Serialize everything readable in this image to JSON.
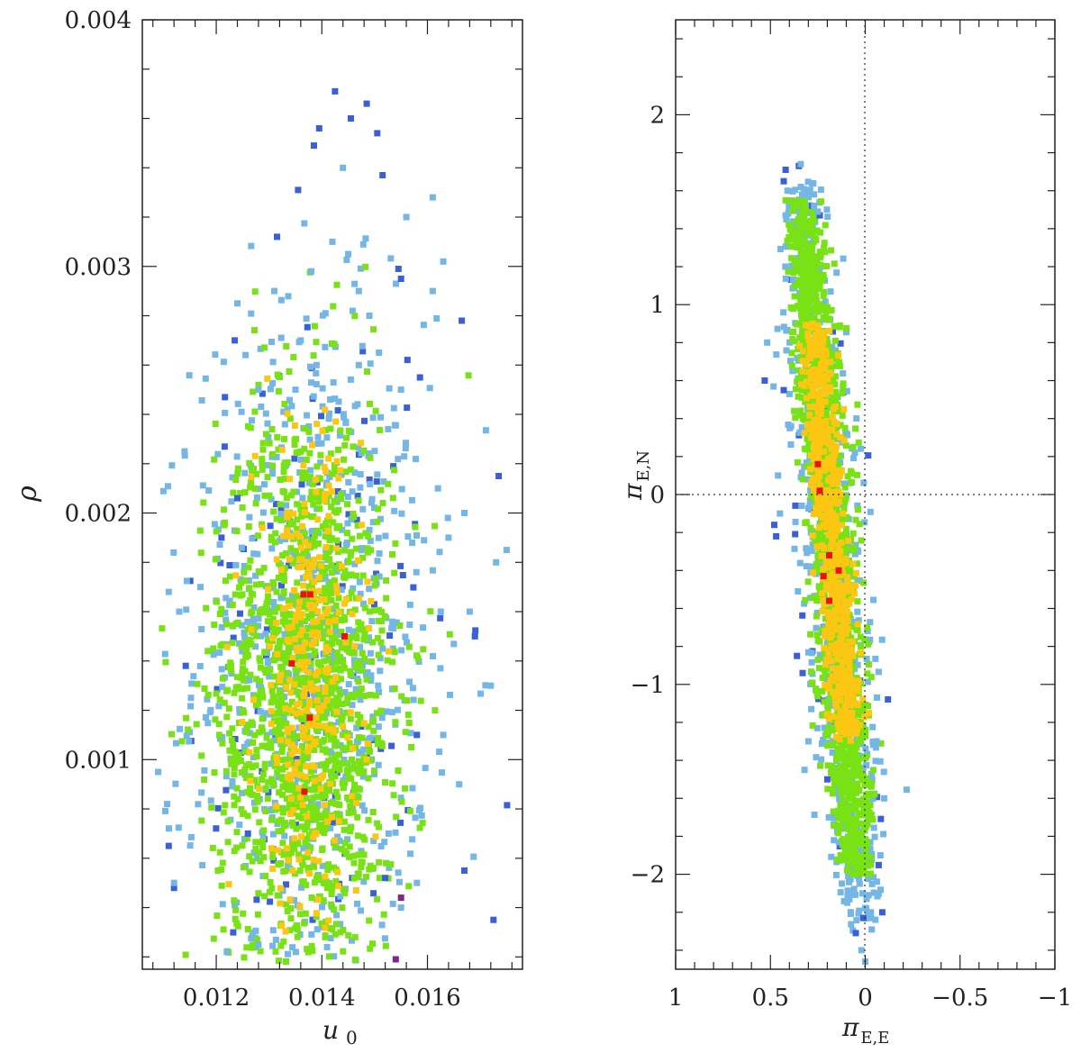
{
  "colors": {
    "blue_dark": "#3a5fd6",
    "blue_light": "#74b6e6",
    "green": "#78e214",
    "yellow": "#fcc713",
    "red": "#ee1111",
    "purple": "#7a2a8a"
  },
  "chart_data": [
    {
      "type": "scatter",
      "title": "",
      "xlabel": "u",
      "xlabel_sub": "0",
      "ylabel": "ρ",
      "xlim": [
        0.0106,
        0.0178
      ],
      "ylim": [
        0.00015,
        0.004
      ],
      "xticks": [
        0.012,
        0.014,
        0.016
      ],
      "xtick_labels": [
        "0.012",
        "0.014",
        "0.016"
      ],
      "yticks": [
        0.001,
        0.002,
        0.003,
        0.004
      ],
      "ytick_labels": [
        "0.001",
        "0.002",
        "0.003",
        "0.004"
      ],
      "grid": false,
      "series": [
        {
          "color": "blue_dark",
          "points": [
            [
              0.01425,
              0.00371
            ],
            [
              0.01485,
              0.00366
            ],
            [
              0.01455,
              0.0036
            ],
            [
              0.01395,
              0.00356
            ],
            [
              0.01505,
              0.00354
            ],
            [
              0.01385,
              0.00349
            ],
            [
              0.01515,
              0.00337
            ],
            [
              0.01355,
              0.00331
            ],
            [
              0.01315,
              0.00312
            ],
            [
              0.0155,
              0.00295
            ],
            [
              0.01545,
              0.00299
            ],
            [
              0.01235,
              0.0027
            ],
            [
              0.01665,
              0.00278
            ],
            [
              0.01735,
              0.00215
            ],
            [
              0.0111,
              0.00065
            ],
            [
              0.0112,
              0.00048
            ],
            [
              0.0124,
              0.00206
            ],
            [
              0.0121,
              0.0019
            ],
            [
              0.0167,
              0.00055
            ],
            [
              0.01725,
              0.00035
            ],
            [
              0.0152,
              0.00052
            ],
            [
              0.0126,
              0.0007
            ],
            [
              0.0158,
              0.0011
            ],
            [
              0.0169,
              0.0015
            ]
          ]
        },
        {
          "color": "blue_light",
          "points": [
            [
              0.0161,
              0.00328
            ],
            [
              0.0156,
              0.0032
            ],
            [
              0.0163,
              0.00302
            ],
            [
              0.0138,
              0.00298
            ],
            [
              0.0145,
              0.00305
            ],
            [
              0.0131,
              0.0029
            ],
            [
              0.0124,
              0.00285
            ],
            [
              0.0149,
              0.0028
            ],
            [
              0.0161,
              0.0029
            ],
            [
              0.0117,
              0.0017
            ],
            [
              0.0114,
              0.00225
            ],
            [
              0.0111,
              0.00168
            ],
            [
              0.0113,
              0.0016
            ],
            [
              0.0112,
              0.0005
            ],
            [
              0.0109,
              0.00095
            ],
            [
              0.0162,
              0.0021
            ],
            [
              0.0164,
              0.0019
            ],
            [
              0.0167,
              0.002
            ],
            [
              0.0168,
              0.0016
            ],
            [
              0.0172,
              0.0013
            ],
            [
              0.0173,
              0.0018
            ],
            [
              0.0175,
              0.00185
            ],
            [
              0.0166,
              0.0009
            ],
            [
              0.0163,
              0.0011
            ],
            [
              0.0158,
              0.0005
            ],
            [
              0.0155,
              0.0004
            ],
            [
              0.0122,
              0.00022
            ],
            [
              0.0128,
              0.00025
            ],
            [
              0.0141,
              0.00024
            ],
            [
              0.0139,
              0.0026
            ],
            [
              0.0147,
              0.0026
            ],
            [
              0.0135,
              0.0025
            ],
            [
              0.0128,
              0.0025
            ],
            [
              0.0155,
              0.0025
            ],
            [
              0.0142,
              0.0031
            ],
            [
              0.0136,
              0.0027
            ],
            [
              0.0144,
              0.0034
            ],
            [
              0.0147,
              0.0029
            ]
          ]
        },
        {
          "color": "purple",
          "points": [
            [
              0.0154,
              0.00019
            ],
            [
              0.0155,
              0.00044
            ]
          ]
        },
        {
          "color": "red",
          "points": [
            [
              0.01365,
              0.00167
            ],
            [
              0.01378,
              0.00167
            ],
            [
              0.01443,
              0.0015
            ],
            [
              0.01343,
              0.00139
            ],
            [
              0.01377,
              0.00117
            ],
            [
              0.01367,
              0.00087
            ]
          ]
        }
      ],
      "cloud": {
        "description_values": "dense cloud of MCMC samples",
        "yellow_core": {
          "x_center": 0.01375,
          "x_sd": 0.0005,
          "y_center": 0.00135,
          "y_sd": 0.0005,
          "count": 300
        },
        "green_mid": {
          "x_center": 0.0137,
          "x_sd": 0.00085,
          "y_center": 0.00125,
          "y_sd": 0.0006,
          "count": 1400
        },
        "blue_light_halo": {
          "x_center": 0.0138,
          "x_sd": 0.0011,
          "y_center": 0.0014,
          "y_sd": 0.0007,
          "count": 750
        },
        "blue_dark_halo": {
          "x_center": 0.0139,
          "x_sd": 0.0013,
          "y_center": 0.0014,
          "y_sd": 0.0008,
          "count": 120
        }
      }
    },
    {
      "type": "scatter",
      "title": "",
      "xlabel": "π",
      "xlabel_sub": "E,E",
      "ylabel": "π",
      "ylabel_sub": "E,N",
      "xlim": [
        1,
        -1
      ],
      "ylim": [
        -2.5,
        2.5
      ],
      "xticks": [
        1,
        0.5,
        0,
        -0.5,
        -1
      ],
      "xtick_labels": [
        "1",
        "0.5",
        "0",
        "−0.5",
        "−1"
      ],
      "yticks": [
        -2,
        -1,
        0,
        1,
        2
      ],
      "ytick_labels": [
        "−2",
        "−1",
        "0",
        "1",
        "2"
      ],
      "reference_lines": {
        "x": 0,
        "y": 0,
        "style": "dotted"
      },
      "grid": false,
      "series": [
        {
          "color": "blue_dark",
          "points": [
            [
              0.42,
              1.71
            ],
            [
              0.35,
              1.73
            ],
            [
              0.43,
              1.65
            ],
            [
              0.24,
              1.47
            ],
            [
              0.28,
              1.52
            ],
            [
              0.53,
              0.6
            ],
            [
              0.48,
              -0.16
            ],
            [
              0.47,
              -0.22
            ],
            [
              0.36,
              -0.85
            ],
            [
              0.33,
              -0.94
            ],
            [
              0.01,
              -2.23
            ],
            [
              0.05,
              -2.31
            ],
            [
              -0.09,
              -2.2
            ],
            [
              0.2,
              -1.5
            ],
            [
              0.43,
              0.55
            ]
          ]
        },
        {
          "color": "blue_light",
          "points": [
            [
              0.34,
              1.74
            ],
            [
              0.41,
              1.6
            ],
            [
              0.27,
              1.52
            ],
            [
              0.42,
              1.47
            ],
            [
              0.25,
              1.49
            ],
            [
              0.0,
              -2.46
            ],
            [
              0.02,
              -2.4
            ],
            [
              -0.03,
              -2.2
            ],
            [
              0.08,
              -2.1
            ],
            [
              -0.08,
              -1.9
            ],
            [
              -0.1,
              -1.6
            ],
            [
              0.32,
              -1.45
            ],
            [
              0.3,
              -1.3
            ],
            [
              -0.06,
              -1.3
            ],
            [
              0.46,
              0.1
            ],
            [
              0.45,
              -0.1
            ]
          ]
        },
        {
          "color": "red",
          "points": [
            [
              0.25,
              0.16
            ],
            [
              0.24,
              0.02
            ],
            [
              0.19,
              -0.32
            ],
            [
              0.14,
              -0.4
            ],
            [
              0.22,
              -0.43
            ],
            [
              0.19,
              -0.56
            ]
          ]
        }
      ],
      "cloud": {
        "description_values": "elongated band of MCMC samples",
        "band": {
          "x_at_y_top": 0.33,
          "x_at_y_bottom": 0.02,
          "y_top": 1.6,
          "y_bottom": -2.2
        },
        "yellow_core": {
          "y_min": -1.3,
          "y_max": 0.9,
          "x_sd": 0.04,
          "count": 650
        },
        "green_mid": {
          "y_min": -2.0,
          "y_max": 1.55,
          "x_sd": 0.06,
          "count": 1500
        },
        "blue_light_halo": {
          "y_min": -2.3,
          "y_max": 1.65,
          "x_sd": 0.085,
          "count": 700
        },
        "blue_dark_halo": {
          "y_min": -2.0,
          "y_max": 1.6,
          "x_sd": 0.1,
          "count": 60
        }
      }
    }
  ]
}
